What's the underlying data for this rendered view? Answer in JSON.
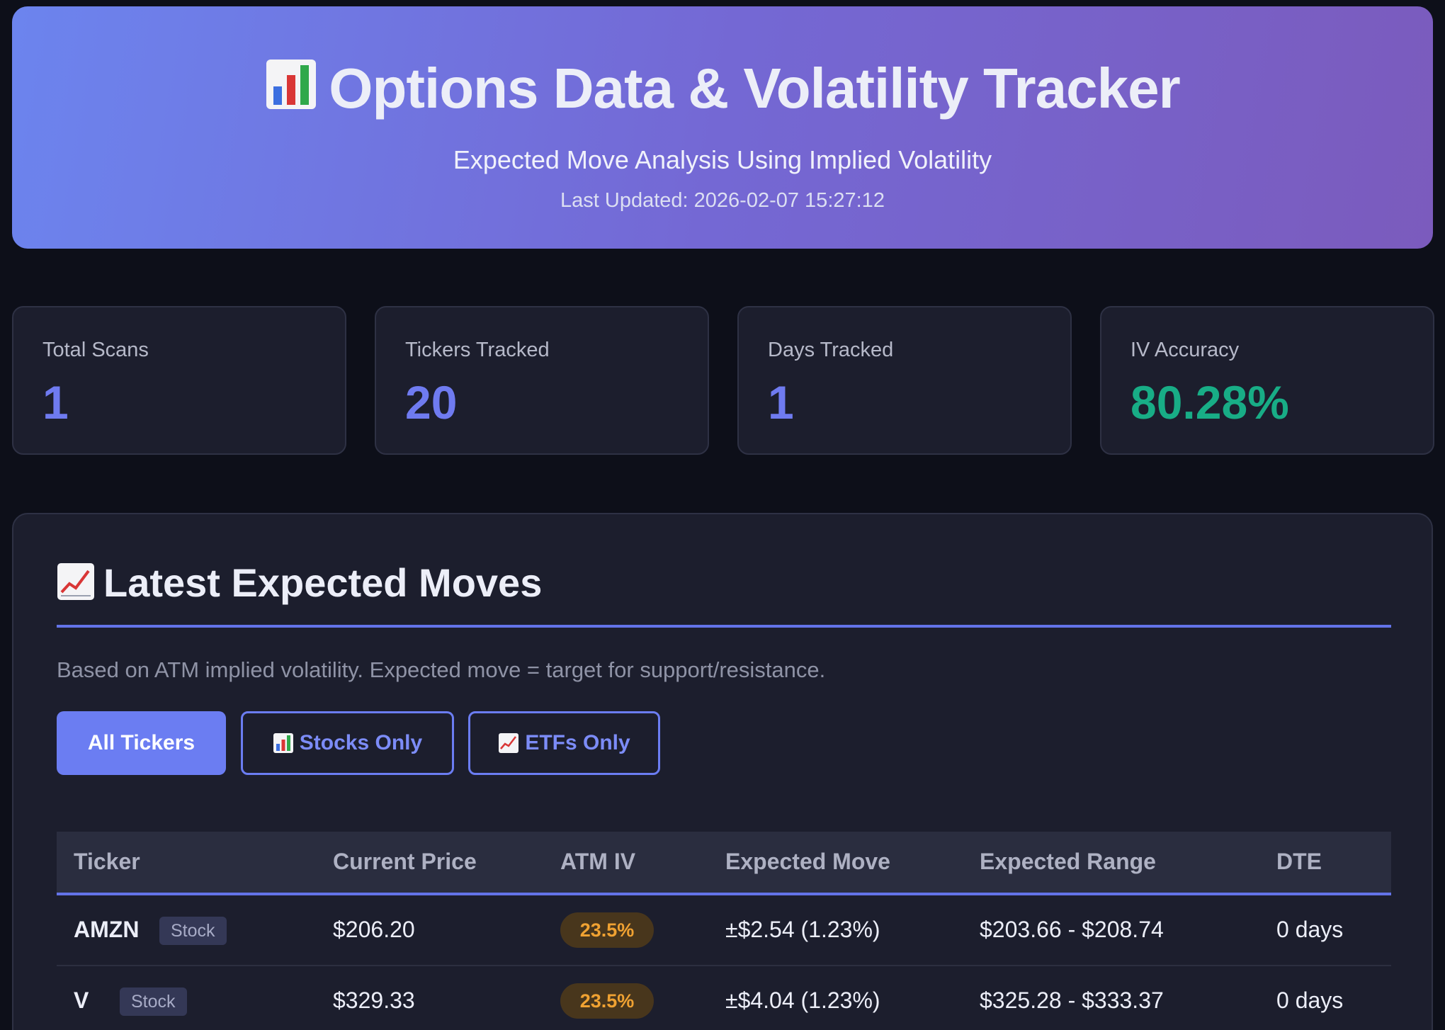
{
  "header": {
    "title": "Options Data & Volatility Tracker",
    "title_icon": "bar-chart-icon",
    "subtitle": "Expected Move Analysis Using Implied Volatility",
    "last_updated": "Last Updated: 2026-02-07 15:27:12"
  },
  "stats": [
    {
      "label": "Total Scans",
      "value": "1"
    },
    {
      "label": "Tickers Tracked",
      "value": "20"
    },
    {
      "label": "Days Tracked",
      "value": "1"
    },
    {
      "label": "IV Accuracy",
      "value": "80.28%"
    }
  ],
  "panel": {
    "title": "Latest Expected Moves",
    "title_icon": "trend-chart-icon",
    "description": "Based on ATM implied volatility. Expected move = target for support/resistance."
  },
  "filters": {
    "all_label": "All Tickers",
    "stocks_label": "Stocks Only",
    "etfs_label": "ETFs Only",
    "active": "All Tickers"
  },
  "table": {
    "headers": [
      "Ticker",
      "Current Price",
      "ATM IV",
      "Expected Move",
      "Expected Range",
      "DTE"
    ],
    "rows": [
      {
        "ticker": "AMZN",
        "type": "Stock",
        "price": "$206.20",
        "iv": "23.5%",
        "move": "±$2.54 (1.23%)",
        "range": "$203.66 - $208.74",
        "dte": "0 days"
      },
      {
        "ticker": "V",
        "type": "Stock",
        "price": "$329.33",
        "iv": "23.5%",
        "move": "±$4.04 (1.23%)",
        "range": "$325.28 - $333.37",
        "dte": "0 days"
      }
    ]
  },
  "colors": {
    "accent": "#6b7df2",
    "positive": "#18ad86",
    "iv_badge": "#f0a232"
  }
}
